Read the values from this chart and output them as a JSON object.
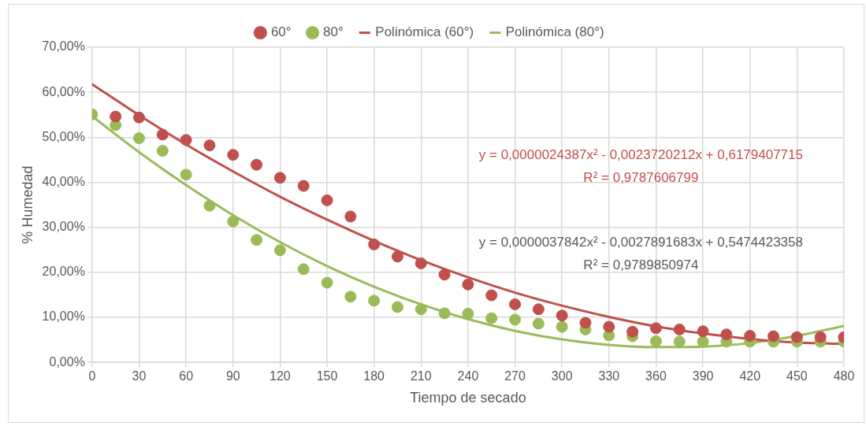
{
  "chart_data": {
    "type": "scatter",
    "xlabel": "Tiempo de secado",
    "ylabel": "% Humedad",
    "xlim": [
      0,
      480
    ],
    "xticks": [
      0,
      30,
      60,
      90,
      120,
      150,
      180,
      210,
      240,
      270,
      300,
      330,
      360,
      390,
      420,
      450,
      480
    ],
    "ylim": [
      0,
      70
    ],
    "yticks": [
      {
        "value": 0,
        "label": "0,00%"
      },
      {
        "value": 10,
        "label": "10,00%"
      },
      {
        "value": 20,
        "label": "20,00%"
      },
      {
        "value": 30,
        "label": "30,00%"
      },
      {
        "value": 40,
        "label": "40,00%"
      },
      {
        "value": 50,
        "label": "50,00%"
      },
      {
        "value": 60,
        "label": "60,00%"
      },
      {
        "value": 70,
        "label": "70,00%"
      }
    ],
    "grid": true,
    "legend": "top",
    "x": [
      0,
      15,
      30,
      45,
      60,
      75,
      90,
      105,
      120,
      135,
      150,
      165,
      180,
      195,
      210,
      225,
      240,
      255,
      270,
      285,
      300,
      315,
      330,
      345,
      360,
      375,
      390,
      405,
      420,
      435,
      450,
      465,
      480
    ],
    "series": [
      {
        "name": "60°",
        "marker": "circle",
        "color": "#c0504d",
        "values": [
          null,
          54.6,
          54.4,
          50.6,
          49.4,
          48.2,
          46.1,
          43.9,
          41.0,
          39.2,
          36.0,
          32.4,
          26.2,
          23.5,
          22.0,
          19.5,
          17.3,
          14.9,
          12.9,
          11.8,
          10.4,
          8.8,
          7.9,
          6.8,
          7.6,
          7.3,
          6.9,
          6.2,
          5.9,
          5.8,
          5.6,
          5.6,
          5.6
        ]
      },
      {
        "name": "80°",
        "marker": "circle",
        "color": "#9bbb59",
        "values": [
          55.1,
          52.7,
          49.8,
          47.0,
          41.7,
          34.8,
          31.3,
          27.2,
          24.9,
          20.7,
          17.7,
          14.6,
          13.7,
          12.3,
          11.8,
          10.9,
          10.8,
          9.8,
          9.5,
          8.6,
          7.9,
          7.3,
          6.0,
          5.8,
          4.7,
          4.6,
          4.6,
          4.6,
          4.6,
          4.6,
          4.6,
          4.6,
          4.6
        ]
      },
      {
        "name": "Polinómica (60°)",
        "type": "line",
        "marker": "none",
        "color": "#c0504d",
        "x": [
          0,
          30,
          60,
          90,
          120,
          150,
          180,
          210,
          240,
          270,
          300,
          330,
          360,
          390,
          420,
          450,
          480
        ],
        "values": [
          61.8,
          54.9,
          48.4,
          42.4,
          36.8,
          31.7,
          27.0,
          22.7,
          18.9,
          15.5,
          12.6,
          10.1,
          8.0,
          6.4,
          5.2,
          4.4,
          4.1
        ]
      },
      {
        "name": "Polinómica (80°)",
        "type": "line",
        "marker": "none",
        "color": "#9bbb59",
        "x": [
          0,
          30,
          60,
          90,
          120,
          150,
          180,
          210,
          240,
          270,
          300,
          330,
          360,
          390,
          420,
          450,
          480
        ],
        "values": [
          54.7,
          46.7,
          39.4,
          32.7,
          26.7,
          21.4,
          16.8,
          12.9,
          9.6,
          7.0,
          5.1,
          3.9,
          3.4,
          3.5,
          4.3,
          5.9,
          8.1
        ]
      }
    ],
    "annotations": [
      "y = 0,0000024387x² - 0,0023720212x + 0,6179407715",
      "R² = 0,9787606799",
      "y = 0,0000037842x² - 0,0027891683x + 0,5474423358",
      "R² = 0,9789850974"
    ]
  }
}
